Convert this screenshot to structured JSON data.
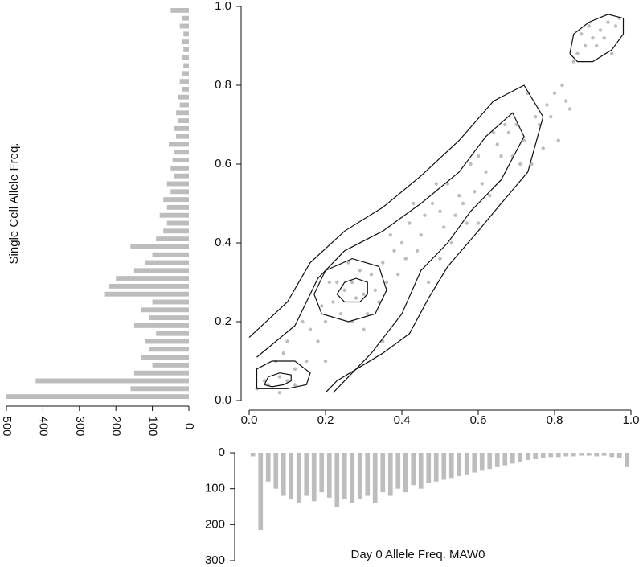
{
  "chart_data": [
    {
      "type": "scatter",
      "xlabel": "Day 0 Allele Freq. MAW0",
      "ylabel": "Single Cell Allele Freq.",
      "color": "#bdbdbd",
      "contour_color": "#111111",
      "xlim": [
        0,
        1
      ],
      "ylim": [
        0,
        1
      ],
      "xticks": [
        {
          "value": 0,
          "label": "0.0"
        },
        0.2,
        0.4,
        0.6,
        0.8,
        {
          "value": 1,
          "label": "1.0"
        }
      ],
      "yticks": [
        {
          "value": 0,
          "label": "0.0"
        },
        0.2,
        0.4,
        0.6,
        0.8,
        {
          "value": 1,
          "label": "1.0"
        }
      ],
      "x": [
        0.05,
        0.08,
        0.1,
        0.12,
        0.15,
        0.02,
        0.04,
        0.18,
        0.2,
        0.22,
        0.25,
        0.27,
        0.3,
        0.32,
        0.28,
        0.24,
        0.21,
        0.35,
        0.38,
        0.4,
        0.42,
        0.45,
        0.48,
        0.5,
        0.52,
        0.55,
        0.58,
        0.6,
        0.62,
        0.65,
        0.68,
        0.7,
        0.72,
        0.75,
        0.78,
        0.8,
        0.82,
        0.85,
        0.88,
        0.9,
        0.92,
        0.94,
        0.96,
        0.97,
        0.87,
        0.91,
        0.93,
        0.95,
        0.89,
        0.86,
        0.1,
        0.14,
        0.19,
        0.23,
        0.29,
        0.33,
        0.37,
        0.41,
        0.46,
        0.51,
        0.56,
        0.61,
        0.66,
        0.71,
        0.76,
        0.81,
        0.84,
        0.07,
        0.16,
        0.26,
        0.31,
        0.36,
        0.44,
        0.49,
        0.54,
        0.59,
        0.64,
        0.69,
        0.74,
        0.79,
        0.08,
        0.09,
        0.27,
        0.34,
        0.39,
        0.43,
        0.53,
        0.57,
        0.63,
        0.67,
        0.73,
        0.77,
        0.83,
        0.12,
        0.2,
        0.3,
        0.47,
        0.5,
        0.6,
        0.35
      ],
      "y": [
        0.04,
        0.06,
        0.05,
        0.08,
        0.1,
        0.03,
        0.05,
        0.15,
        0.2,
        0.25,
        0.28,
        0.3,
        0.27,
        0.32,
        0.26,
        0.22,
        0.3,
        0.35,
        0.38,
        0.4,
        0.45,
        0.42,
        0.5,
        0.48,
        0.55,
        0.52,
        0.6,
        0.62,
        0.58,
        0.65,
        0.68,
        0.7,
        0.66,
        0.72,
        0.75,
        0.78,
        0.8,
        0.86,
        0.9,
        0.92,
        0.94,
        0.96,
        0.95,
        0.97,
        0.93,
        0.9,
        0.92,
        0.88,
        0.95,
        0.88,
        0.15,
        0.2,
        0.24,
        0.3,
        0.33,
        0.28,
        0.42,
        0.36,
        0.47,
        0.44,
        0.5,
        0.55,
        0.62,
        0.6,
        0.7,
        0.66,
        0.74,
        0.1,
        0.18,
        0.35,
        0.22,
        0.3,
        0.38,
        0.55,
        0.47,
        0.53,
        0.68,
        0.62,
        0.6,
        0.72,
        0.02,
        0.12,
        0.2,
        0.25,
        0.32,
        0.5,
        0.4,
        0.45,
        0.52,
        0.7,
        0.78,
        0.64,
        0.76,
        0.04,
        0.1,
        0.18,
        0.3,
        0.36,
        0.45,
        0.15
      ],
      "contours": [
        {
          "x": [
            0.84,
            0.85,
            0.89,
            0.94,
            0.98,
            0.98,
            0.95,
            0.9,
            0.86,
            0.84
          ],
          "y": [
            0.88,
            0.93,
            0.96,
            0.98,
            0.97,
            0.93,
            0.89,
            0.86,
            0.86,
            0.88
          ]
        },
        {
          "x": [
            0.04,
            0.05,
            0.08,
            0.11,
            0.11,
            0.09,
            0.06,
            0.04
          ],
          "y": [
            0.04,
            0.06,
            0.07,
            0.065,
            0.05,
            0.04,
            0.035,
            0.04
          ]
        },
        {
          "x": [
            0.02,
            0.02,
            0.06,
            0.12,
            0.16,
            0.15,
            0.1,
            0.02
          ],
          "y": [
            0.03,
            0.08,
            0.1,
            0.1,
            0.07,
            0.04,
            0.03,
            0.03
          ]
        },
        {
          "x": [
            0.23,
            0.25,
            0.28,
            0.31,
            0.31,
            0.29,
            0.25,
            0.23
          ],
          "y": [
            0.27,
            0.3,
            0.31,
            0.3,
            0.27,
            0.25,
            0.25,
            0.27
          ]
        },
        {
          "x": [
            0.17,
            0.2,
            0.27,
            0.34,
            0.36,
            0.33,
            0.26,
            0.19,
            0.17
          ],
          "y": [
            0.27,
            0.33,
            0.36,
            0.34,
            0.28,
            0.22,
            0.2,
            0.22,
            0.27
          ]
        },
        {
          "x": [
            0.02,
            0.12,
            0.18,
            0.25,
            0.35,
            0.45,
            0.55,
            0.62,
            0.69,
            0.72,
            0.66,
            0.58,
            0.52,
            0.45,
            0.4,
            0.32,
            0.24,
            0.22
          ],
          "y": [
            0.11,
            0.19,
            0.31,
            0.38,
            0.43,
            0.5,
            0.58,
            0.67,
            0.73,
            0.67,
            0.56,
            0.48,
            0.4,
            0.33,
            0.22,
            0.12,
            0.04,
            0.02
          ]
        },
        {
          "x": [
            0,
            0.1,
            0.16,
            0.25,
            0.35,
            0.45,
            0.55,
            0.64,
            0.72,
            0.77,
            0.73,
            0.66,
            0.6,
            0.52,
            0.47,
            0.42,
            0.35,
            0.23,
            0.2
          ],
          "y": [
            0.16,
            0.25,
            0.35,
            0.43,
            0.49,
            0.57,
            0.66,
            0.76,
            0.8,
            0.72,
            0.58,
            0.5,
            0.43,
            0.34,
            0.26,
            0.17,
            0.12,
            0.05,
            0.02
          ]
        }
      ]
    },
    {
      "type": "histogram",
      "orientation": "horizontal",
      "color": "#bdbdbd",
      "xlim": [
        500,
        0
      ],
      "ylim": [
        0,
        1
      ],
      "xticks": [
        500,
        400,
        300,
        200,
        100,
        0
      ],
      "bins": [
        0,
        0.02,
        0.04,
        0.06,
        0.08,
        0.1,
        0.12,
        0.14,
        0.16,
        0.18,
        0.2,
        0.22,
        0.24,
        0.26,
        0.28,
        0.3,
        0.32,
        0.34,
        0.36,
        0.38,
        0.4,
        0.42,
        0.44,
        0.46,
        0.48,
        0.5,
        0.52,
        0.54,
        0.56,
        0.58,
        0.6,
        0.62,
        0.64,
        0.66,
        0.68,
        0.7,
        0.72,
        0.74,
        0.76,
        0.78,
        0.8,
        0.82,
        0.84,
        0.86,
        0.88,
        0.9,
        0.92,
        0.94,
        0.96,
        0.98,
        1
      ],
      "values": [
        500,
        160,
        420,
        150,
        100,
        130,
        110,
        120,
        90,
        150,
        110,
        130,
        100,
        230,
        220,
        200,
        150,
        120,
        100,
        160,
        90,
        70,
        60,
        80,
        60,
        70,
        50,
        60,
        40,
        50,
        45,
        40,
        55,
        35,
        40,
        30,
        35,
        25,
        30,
        20,
        25,
        20,
        15,
        20,
        15,
        20,
        15,
        25,
        20,
        50
      ]
    },
    {
      "type": "histogram",
      "orientation": "vertical",
      "color": "#bdbdbd",
      "xlim": [
        0,
        1
      ],
      "ylim": [
        0,
        300
      ],
      "yticks": [
        0,
        100,
        200,
        300
      ],
      "bins": [
        0,
        0.02,
        0.04,
        0.06,
        0.08,
        0.1,
        0.12,
        0.14,
        0.16,
        0.18,
        0.2,
        0.22,
        0.24,
        0.26,
        0.28,
        0.3,
        0.32,
        0.34,
        0.36,
        0.38,
        0.4,
        0.42,
        0.44,
        0.46,
        0.48,
        0.5,
        0.52,
        0.54,
        0.56,
        0.58,
        0.6,
        0.62,
        0.64,
        0.66,
        0.68,
        0.7,
        0.72,
        0.74,
        0.76,
        0.78,
        0.8,
        0.82,
        0.84,
        0.86,
        0.88,
        0.9,
        0.92,
        0.94,
        0.96,
        0.98,
        1
      ],
      "values": [
        10,
        215,
        80,
        100,
        120,
        130,
        140,
        120,
        135,
        110,
        125,
        150,
        130,
        140,
        130,
        120,
        140,
        110,
        120,
        100,
        110,
        90,
        100,
        85,
        80,
        75,
        70,
        65,
        60,
        55,
        50,
        45,
        40,
        35,
        30,
        25,
        20,
        18,
        15,
        12,
        12,
        10,
        10,
        8,
        8,
        10,
        8,
        12,
        15,
        40
      ]
    }
  ]
}
